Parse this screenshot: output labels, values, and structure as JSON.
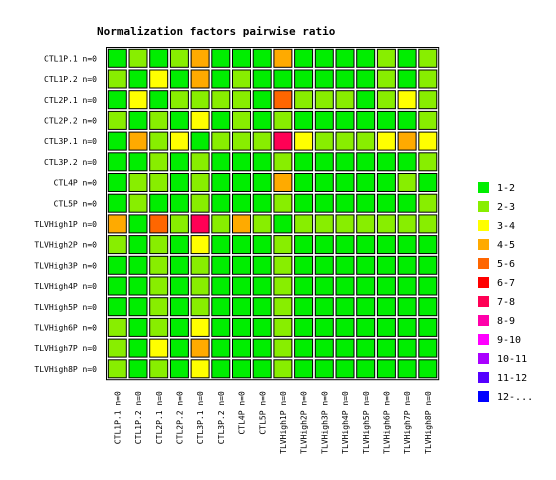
{
  "chart_data": {
    "type": "heatmap",
    "title": "Normalization factors pairwise ratio",
    "rows": [
      "CTL1P.1 n=0",
      "CTL1P.2 n=0",
      "CTL2P.1 n=0",
      "CTL2P.2 n=0",
      "CTL3P.1 n=0",
      "CTL3P.2 n=0",
      "CTL4P n=0",
      "CTL5P n=0",
      "TLVHigh1P n=0",
      "TLVHigh2P n=0",
      "TLVHigh3P n=0",
      "TLVHigh4P n=0",
      "TLVHigh5P n=0",
      "TLVHigh6P n=0",
      "TLVHigh7P n=0",
      "TLVHigh8P n=0"
    ],
    "columns": [
      "CTL1P.1 n=0",
      "CTL1P.2 n=0",
      "CTL2P.1 n=0",
      "CTL2P.2 n=0",
      "CTL3P.1 n=0",
      "CTL3P.2 n=0",
      "CTL4P n=0",
      "CTL5P n=0",
      "TLVHigh1P n=0",
      "TLVHigh2P n=0",
      "TLVHigh3P n=0",
      "TLVHigh4P n=0",
      "TLVHigh5P n=0",
      "TLVHigh6P n=0",
      "TLVHigh7P n=0",
      "TLVHigh8P n=0"
    ],
    "legend": [
      {
        "label": "1-2",
        "color": "#00ee00"
      },
      {
        "label": "2-3",
        "color": "#88ee00"
      },
      {
        "label": "3-4",
        "color": "#ffff00"
      },
      {
        "label": "4-5",
        "color": "#ffaa00"
      },
      {
        "label": "5-6",
        "color": "#ff6600"
      },
      {
        "label": "6-7",
        "color": "#ff0000"
      },
      {
        "label": "7-8",
        "color": "#ff0055"
      },
      {
        "label": "8-9",
        "color": "#ff00aa"
      },
      {
        "label": "9-10",
        "color": "#ff00ff"
      },
      {
        "label": "10-11",
        "color": "#aa00ff"
      },
      {
        "label": "11-12",
        "color": "#5500ff"
      },
      {
        "label": "12-...",
        "color": "#0000ff"
      }
    ],
    "cell_bins": [
      [
        0,
        1,
        0,
        1,
        3,
        0,
        0,
        0,
        3,
        0,
        0,
        0,
        0,
        1,
        0,
        1
      ],
      [
        1,
        0,
        2,
        0,
        3,
        0,
        1,
        0,
        0,
        0,
        0,
        0,
        0,
        1,
        0,
        1
      ],
      [
        0,
        2,
        0,
        1,
        1,
        1,
        1,
        0,
        4,
        1,
        1,
        1,
        0,
        1,
        2,
        1
      ],
      [
        1,
        0,
        1,
        0,
        2,
        0,
        1,
        0,
        1,
        0,
        0,
        0,
        0,
        0,
        0,
        1
      ],
      [
        0,
        3,
        1,
        2,
        0,
        1,
        1,
        1,
        6,
        2,
        1,
        1,
        1,
        2,
        3,
        2
      ],
      [
        0,
        0,
        1,
        0,
        1,
        0,
        0,
        0,
        1,
        0,
        0,
        0,
        0,
        0,
        0,
        1
      ],
      [
        0,
        1,
        1,
        0,
        1,
        0,
        0,
        0,
        3,
        0,
        0,
        0,
        0,
        0,
        1,
        0
      ],
      [
        0,
        1,
        0,
        0,
        1,
        0,
        0,
        0,
        1,
        0,
        0,
        0,
        0,
        0,
        0,
        1
      ],
      [
        3,
        0,
        4,
        1,
        6,
        1,
        3,
        1,
        0,
        1,
        1,
        1,
        1,
        1,
        1,
        1
      ],
      [
        1,
        0,
        1,
        0,
        2,
        0,
        0,
        0,
        1,
        0,
        0,
        0,
        0,
        0,
        0,
        0
      ],
      [
        0,
        0,
        1,
        0,
        1,
        0,
        0,
        0,
        1,
        0,
        0,
        0,
        0,
        0,
        0,
        0
      ],
      [
        0,
        0,
        1,
        0,
        1,
        0,
        0,
        0,
        1,
        0,
        0,
        0,
        0,
        0,
        0,
        0
      ],
      [
        0,
        0,
        1,
        0,
        1,
        0,
        0,
        0,
        1,
        0,
        0,
        0,
        0,
        0,
        0,
        0
      ],
      [
        1,
        0,
        1,
        0,
        2,
        0,
        0,
        0,
        1,
        0,
        0,
        0,
        0,
        0,
        0,
        0
      ],
      [
        1,
        0,
        2,
        0,
        3,
        0,
        0,
        0,
        1,
        0,
        0,
        0,
        0,
        0,
        0,
        0
      ],
      [
        1,
        0,
        1,
        0,
        2,
        0,
        0,
        0,
        1,
        0,
        0,
        0,
        0,
        0,
        0,
        0
      ]
    ]
  }
}
